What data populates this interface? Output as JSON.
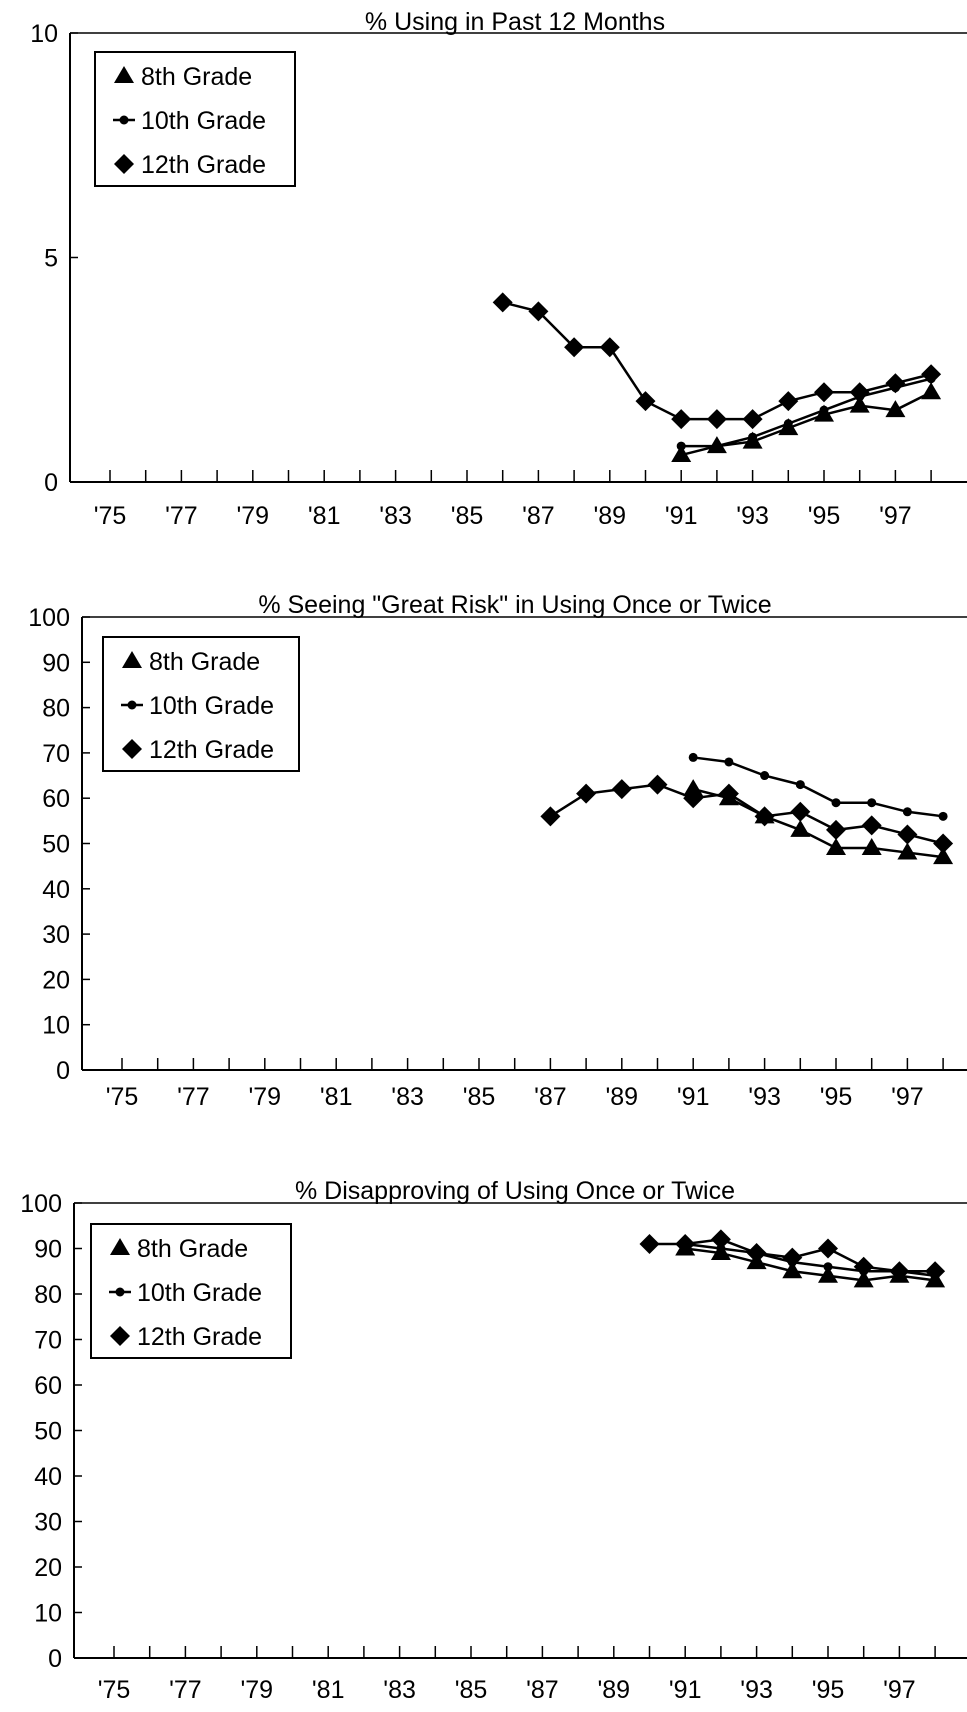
{
  "x_tick_labels": [
    "'75",
    "'77",
    "'79",
    "'81",
    "'83",
    "'85",
    "'87",
    "'89",
    "'91",
    "'93",
    "'95",
    "'97"
  ],
  "legend": [
    "8th Grade",
    "10th Grade",
    "12th Grade"
  ],
  "colors": {
    "line": "#000000",
    "background": "#ffffff"
  },
  "markers": {
    "8th Grade": "triangle",
    "10th Grade": "dot",
    "12th Grade": "diamond"
  },
  "chart_data": [
    {
      "type": "line",
      "title": "% Using in Past 12 Months",
      "xlabel": "",
      "ylabel": "",
      "xlim": [
        1975,
        1998
      ],
      "ylim": [
        0,
        10
      ],
      "yticks": [
        0,
        5,
        10
      ],
      "grid": false,
      "legend_position": "top-left",
      "series": [
        {
          "name": "8th Grade",
          "x": [
            1991,
            1992,
            1993,
            1994,
            1995,
            1996,
            1997,
            1998
          ],
          "values": [
            0.6,
            0.8,
            0.9,
            1.2,
            1.5,
            1.7,
            1.6,
            2.0
          ]
        },
        {
          "name": "10th Grade",
          "x": [
            1991,
            1992,
            1993,
            1994,
            1995,
            1996,
            1997,
            1998
          ],
          "values": [
            0.8,
            0.8,
            1.0,
            1.3,
            1.6,
            1.9,
            2.1,
            2.3
          ]
        },
        {
          "name": "12th Grade",
          "x": [
            1986,
            1987,
            1988,
            1989,
            1990,
            1991,
            1992,
            1993,
            1994,
            1995,
            1996,
            1997,
            1998
          ],
          "values": [
            4.0,
            3.8,
            3.0,
            3.0,
            1.8,
            1.4,
            1.4,
            1.4,
            1.8,
            2.0,
            2.0,
            2.2,
            2.4
          ]
        }
      ]
    },
    {
      "type": "line",
      "title": "% Seeing \"Great Risk\" in Using Once or Twice",
      "xlabel": "",
      "ylabel": "",
      "xlim": [
        1975,
        1998
      ],
      "ylim": [
        0,
        100
      ],
      "yticks": [
        0,
        10,
        20,
        30,
        40,
        50,
        60,
        70,
        80,
        90,
        100
      ],
      "grid": false,
      "legend_position": "top-left",
      "series": [
        {
          "name": "8th Grade",
          "x": [
            1991,
            1992,
            1993,
            1994,
            1995,
            1996,
            1997,
            1998
          ],
          "values": [
            62,
            60,
            56,
            53,
            49,
            49,
            48,
            47
          ]
        },
        {
          "name": "10th Grade",
          "x": [
            1991,
            1992,
            1993,
            1994,
            1995,
            1996,
            1997,
            1998
          ],
          "values": [
            69,
            68,
            65,
            63,
            59,
            59,
            57,
            56
          ]
        },
        {
          "name": "12th Grade",
          "x": [
            1987,
            1988,
            1989,
            1990,
            1991,
            1992,
            1993,
            1994,
            1995,
            1996,
            1997,
            1998
          ],
          "values": [
            56,
            61,
            62,
            63,
            60,
            61,
            56,
            57,
            53,
            54,
            52,
            50
          ]
        }
      ]
    },
    {
      "type": "line",
      "title": "% Disapproving of Using Once or Twice",
      "xlabel": "",
      "ylabel": "",
      "xlim": [
        1975,
        1998
      ],
      "ylim": [
        0,
        100
      ],
      "yticks": [
        0,
        10,
        20,
        30,
        40,
        50,
        60,
        70,
        80,
        90,
        100
      ],
      "grid": false,
      "legend_position": "top-left",
      "series": [
        {
          "name": "8th Grade",
          "x": [
            1991,
            1992,
            1993,
            1994,
            1995,
            1996,
            1997,
            1998
          ],
          "values": [
            90,
            89,
            87,
            85,
            84,
            83,
            84,
            83
          ]
        },
        {
          "name": "10th Grade",
          "x": [
            1991,
            1992,
            1993,
            1994,
            1995,
            1996,
            1997,
            1998
          ],
          "values": [
            91,
            90,
            89,
            87,
            86,
            85,
            85,
            84
          ]
        },
        {
          "name": "12th Grade",
          "x": [
            1990,
            1991,
            1992,
            1993,
            1994,
            1995,
            1996,
            1997,
            1998
          ],
          "values": [
            91,
            91,
            92,
            89,
            88,
            90,
            86,
            85,
            85
          ]
        }
      ]
    }
  ]
}
